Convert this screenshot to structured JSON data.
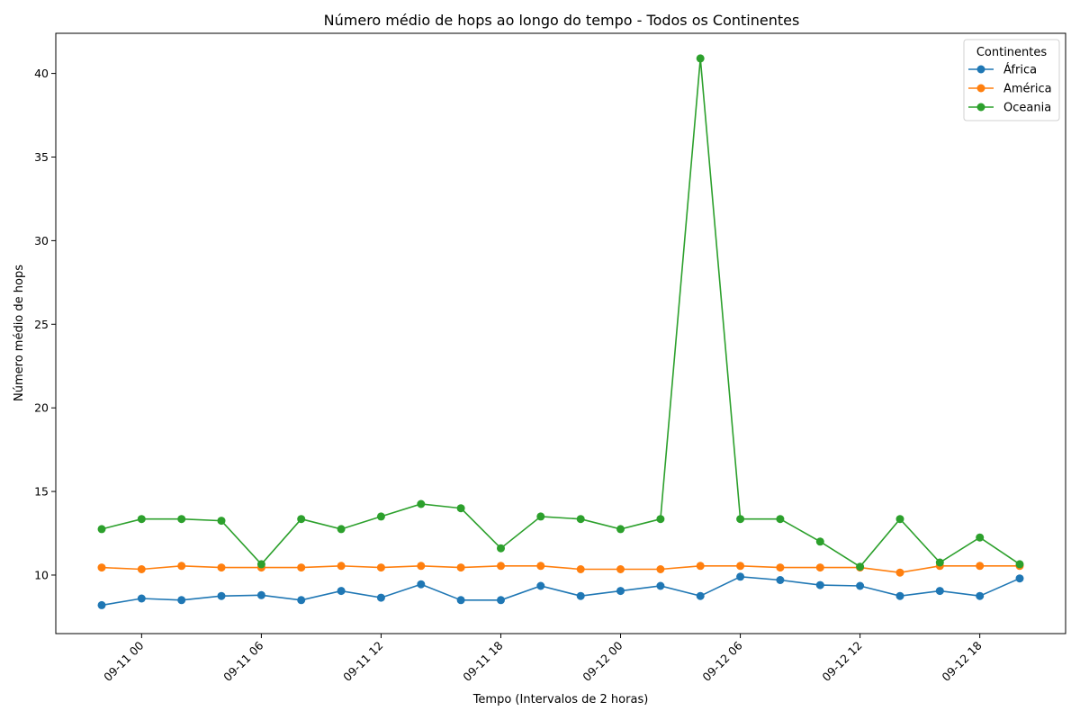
{
  "chart_data": {
    "type": "line",
    "title": "Número médio de hops ao longo do tempo - Todos os Continentes",
    "xlabel": "Tempo (Intervalos de 2 horas)",
    "ylabel": "Número médio de hops",
    "x": [
      "2023-09-10 22:00",
      "2023-09-11 00:00",
      "2023-09-11 02:00",
      "2023-09-11 04:00",
      "2023-09-11 06:00",
      "2023-09-11 08:00",
      "2023-09-11 10:00",
      "2023-09-11 12:00",
      "2023-09-11 14:00",
      "2023-09-11 16:00",
      "2023-09-11 18:00",
      "2023-09-11 20:00",
      "2023-09-11 22:00",
      "2023-09-12 00:00",
      "2023-09-12 02:00",
      "2023-09-12 04:00",
      "2023-09-12 06:00",
      "2023-09-12 08:00",
      "2023-09-12 10:00",
      "2023-09-12 12:00",
      "2023-09-12 14:00",
      "2023-09-12 16:00",
      "2023-09-12 18:00",
      "2023-09-12 20:00"
    ],
    "xticks": [
      "09-11 00",
      "09-11 06",
      "09-11 12",
      "09-11 18",
      "09-12 00",
      "09-12 06",
      "09-12 12",
      "09-12 18"
    ],
    "yticks": [
      10,
      15,
      20,
      25,
      30,
      35,
      40
    ],
    "ylim": [
      6.5,
      42.4
    ],
    "legend_title": "Continentes",
    "legend_position": "top-right",
    "grid": false,
    "series": [
      {
        "name": "África",
        "color": "#1f77b4",
        "values": [
          8.2,
          8.6,
          8.5,
          8.75,
          8.8,
          8.5,
          9.05,
          8.65,
          9.45,
          8.5,
          8.5,
          9.35,
          8.75,
          9.05,
          9.35,
          8.75,
          9.9,
          9.7,
          9.4,
          9.35,
          8.75,
          9.05,
          8.75,
          9.8
        ]
      },
      {
        "name": "América",
        "color": "#ff7f0e",
        "values": [
          10.45,
          10.35,
          10.55,
          10.45,
          10.45,
          10.45,
          10.55,
          10.45,
          10.55,
          10.45,
          10.55,
          10.55,
          10.35,
          10.35,
          10.35,
          10.55,
          10.55,
          10.45,
          10.45,
          10.45,
          10.15,
          10.55,
          10.55,
          10.55
        ]
      },
      {
        "name": "Oceania",
        "color": "#2ca02c",
        "values": [
          12.75,
          13.35,
          13.35,
          13.25,
          10.65,
          13.35,
          12.75,
          13.5,
          14.25,
          14.0,
          11.6,
          13.5,
          13.35,
          12.75,
          13.35,
          40.9,
          13.35,
          13.35,
          12.0,
          10.5,
          13.35,
          10.75,
          12.25,
          10.65
        ]
      }
    ]
  }
}
